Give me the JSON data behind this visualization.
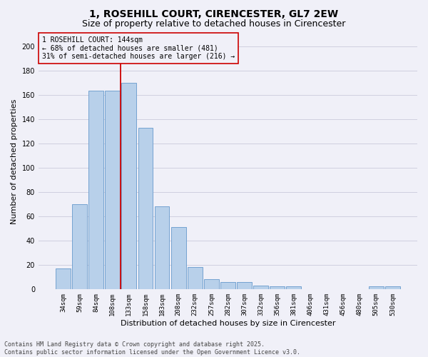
{
  "title_line1": "1, ROSEHILL COURT, CIRENCESTER, GL7 2EW",
  "title_line2": "Size of property relative to detached houses in Cirencester",
  "xlabel": "Distribution of detached houses by size in Cirencester",
  "ylabel": "Number of detached properties",
  "categories": [
    "34sqm",
    "59sqm",
    "84sqm",
    "108sqm",
    "133sqm",
    "158sqm",
    "183sqm",
    "208sqm",
    "232sqm",
    "257sqm",
    "282sqm",
    "307sqm",
    "332sqm",
    "356sqm",
    "381sqm",
    "406sqm",
    "431sqm",
    "456sqm",
    "480sqm",
    "505sqm",
    "530sqm"
  ],
  "values": [
    17,
    70,
    163,
    163,
    170,
    133,
    68,
    51,
    18,
    8,
    6,
    6,
    3,
    2,
    2,
    0,
    0,
    0,
    0,
    2,
    2
  ],
  "bar_color": "#b8d0ea",
  "bar_edge_color": "#6699cc",
  "vline_color": "#cc0000",
  "vline_x_index": 4.5,
  "annotation_text_line1": "1 ROSEHILL COURT: 144sqm",
  "annotation_text_line2": "← 68% of detached houses are smaller (481)",
  "annotation_text_line3": "31% of semi-detached houses are larger (216) →",
  "annotation_box_color": "#cc0000",
  "footer_line1": "Contains HM Land Registry data © Crown copyright and database right 2025.",
  "footer_line2": "Contains public sector information licensed under the Open Government Licence v3.0.",
  "ylim_max": 210,
  "background_color": "#f0f0f8",
  "grid_color": "#d0d0e0",
  "title_fontsize": 10,
  "subtitle_fontsize": 9,
  "tick_fontsize": 6.5,
  "ylabel_fontsize": 8,
  "xlabel_fontsize": 8,
  "annotation_fontsize": 7,
  "footer_fontsize": 6
}
